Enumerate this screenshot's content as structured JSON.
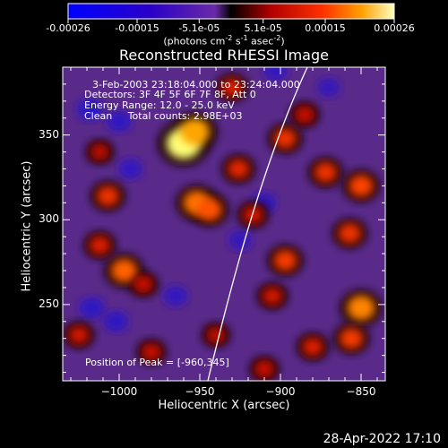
{
  "chart_data": {
    "type": "heatmap",
    "title": "Reconstructed RHESSI Image",
    "xlabel": "Heliocentric X (arcsec)",
    "ylabel": "Heliocentric Y (arcsec)",
    "xlim": [
      -1035,
      -835
    ],
    "ylim": [
      205,
      390
    ],
    "xticks": [
      -1000,
      -950,
      -900,
      -850
    ],
    "xtick_labels": [
      "−1000",
      "−950",
      "−900",
      "−850"
    ],
    "yticks": [
      250,
      300,
      350
    ],
    "ytick_labels": [
      "250",
      "300",
      "350"
    ],
    "colorbar": {
      "range": [
        -0.00026,
        0.00026
      ],
      "tick_values": [
        -0.00026,
        -0.00015,
        -5.1e-05,
        5.1e-05,
        0.00015,
        0.00026
      ],
      "tick_labels": [
        "-0.00026",
        "-0.00015",
        "-5.1e-05",
        "5.1e-05",
        "0.00015",
        "0.00026"
      ],
      "label_prefix": "(photons cm",
      "label_mid1": "s",
      "label_mid2": "asec",
      "label_sup1": "-2",
      "label_sup2": "-1",
      "label_sup3": "-2",
      "label_suffix": ")"
    },
    "annotations": [
      "3-Feb-2003 23:18:04.000 to 23:24:04.000",
      "Detectors: 3F 4F 5F 6F 7F 8F, Att 0",
      "Energy Range: 12.0 - 25.0 keV",
      "Clean     Total counts: 2.98E+03",
      "Position of Peak = [-960,345]"
    ],
    "peak": {
      "x": -960,
      "y": 345
    },
    "hot_spots": [
      {
        "x": -960,
        "y": 345,
        "value": 0.00026
      },
      {
        "x": -953,
        "y": 352,
        "value": 0.0002
      },
      {
        "x": -952,
        "y": 310,
        "value": 0.00017
      },
      {
        "x": -944,
        "y": 306,
        "value": 0.00015
      },
      {
        "x": -1007,
        "y": 314,
        "value": 0.00012
      },
      {
        "x": -997,
        "y": 270,
        "value": 0.00016
      },
      {
        "x": -1012,
        "y": 285,
        "value": 0.0001
      },
      {
        "x": -926,
        "y": 330,
        "value": 0.00011
      },
      {
        "x": -930,
        "y": 378,
        "value": 0.0001
      },
      {
        "x": -917,
        "y": 303,
        "value": 9e-05
      },
      {
        "x": -897,
        "y": 348,
        "value": 0.00012
      },
      {
        "x": -897,
        "y": 276,
        "value": 0.00013
      },
      {
        "x": -905,
        "y": 255,
        "value": 9e-05
      },
      {
        "x": -872,
        "y": 328,
        "value": 0.00012
      },
      {
        "x": -850,
        "y": 320,
        "value": 0.00014
      },
      {
        "x": -857,
        "y": 292,
        "value": 0.00012
      },
      {
        "x": -850,
        "y": 248,
        "value": 0.00018
      },
      {
        "x": -856,
        "y": 230,
        "value": 0.00013
      },
      {
        "x": -880,
        "y": 225,
        "value": 0.0001
      },
      {
        "x": -1025,
        "y": 232,
        "value": 9e-05
      },
      {
        "x": -980,
        "y": 222,
        "value": 8e-05
      },
      {
        "x": -985,
        "y": 262,
        "value": 8e-05
      },
      {
        "x": -1012,
        "y": 340,
        "value": 7e-05
      },
      {
        "x": -885,
        "y": 362,
        "value": 8e-05
      },
      {
        "x": -940,
        "y": 232,
        "value": 7e-05
      },
      {
        "x": -910,
        "y": 212,
        "value": 8e-05
      }
    ],
    "cold_spots": [
      {
        "x": -1018,
        "y": 365,
        "value": -0.00012
      },
      {
        "x": -1000,
        "y": 358,
        "value": -0.0001
      },
      {
        "x": -993,
        "y": 330,
        "value": -9e-05
      },
      {
        "x": -1017,
        "y": 248,
        "value": -0.00011
      },
      {
        "x": -1002,
        "y": 240,
        "value": -0.0001
      },
      {
        "x": -965,
        "y": 255,
        "value": -9e-05
      },
      {
        "x": -925,
        "y": 288,
        "value": -8e-05
      },
      {
        "x": -910,
        "y": 310,
        "value": -9e-05
      },
      {
        "x": -903,
        "y": 388,
        "value": -9e-05
      },
      {
        "x": -870,
        "y": 378,
        "value": -7e-05
      }
    ]
  },
  "timestamp": "28-Apr-2022 17:10"
}
